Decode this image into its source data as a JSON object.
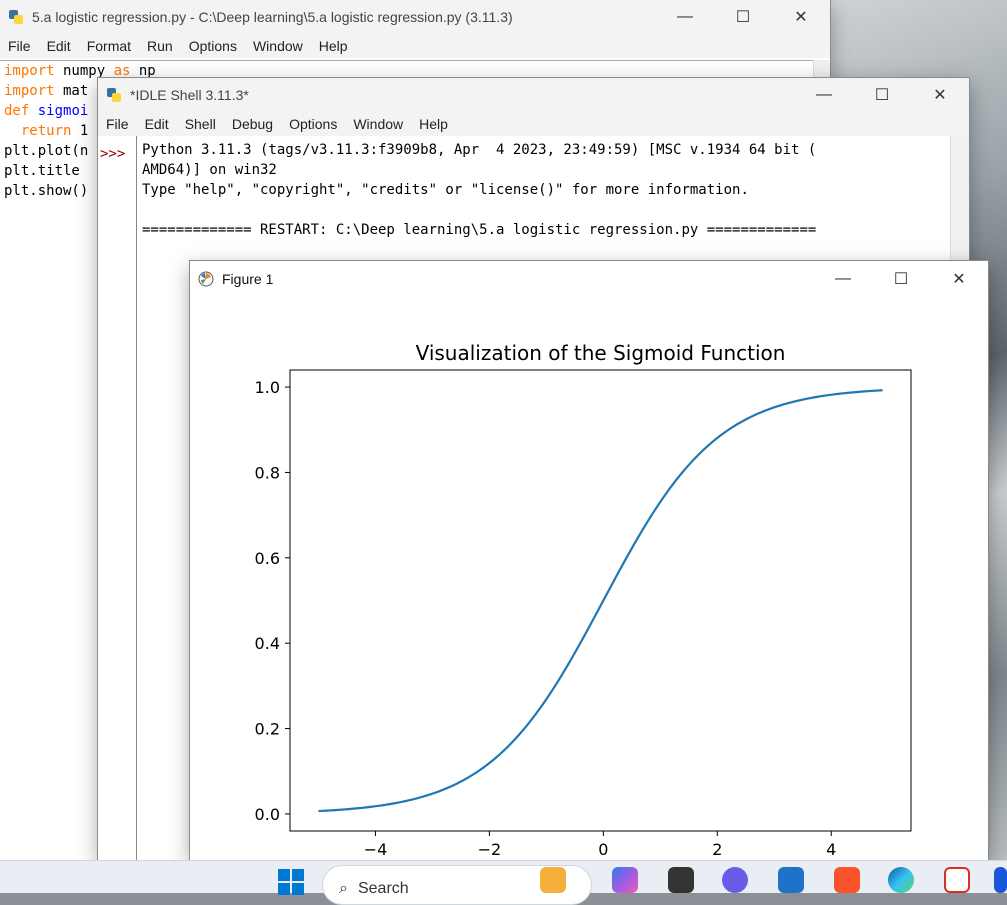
{
  "editor": {
    "title": "5.a logistic regression.py - C:\\Deep learning\\5.a logistic regression.py (3.11.3)",
    "menu": [
      "File",
      "Edit",
      "Format",
      "Run",
      "Options",
      "Window",
      "Help"
    ],
    "lines": [
      {
        "parts": [
          {
            "t": "import",
            "c": "kw"
          },
          {
            "t": " numpy ",
            "c": ""
          },
          {
            "t": "as",
            "c": "kw"
          },
          {
            "t": " np",
            "c": ""
          }
        ]
      },
      {
        "parts": [
          {
            "t": "import",
            "c": "kw"
          },
          {
            "t": " mat",
            "c": ""
          }
        ]
      },
      {
        "parts": [
          {
            "t": "def",
            "c": "kw"
          },
          {
            "t": " sigmoi",
            "c": "fn"
          }
        ]
      },
      {
        "parts": [
          {
            "t": "  return",
            "c": "kw"
          },
          {
            "t": " 1",
            "c": ""
          }
        ]
      },
      {
        "parts": [
          {
            "t": "plt.plot(n",
            "c": ""
          }
        ]
      },
      {
        "parts": [
          {
            "t": "plt.title",
            "c": ""
          }
        ]
      },
      {
        "parts": [
          {
            "t": "plt.show()",
            "c": ""
          }
        ]
      }
    ]
  },
  "shell": {
    "title": "*IDLE Shell 3.11.3*",
    "menu": [
      "File",
      "Edit",
      "Shell",
      "Debug",
      "Options",
      "Window",
      "Help"
    ],
    "prompt": ">>>",
    "lines": [
      "Python 3.11.3 (tags/v3.11.3:f3909b8, Apr  4 2023, 23:49:59) [MSC v.1934 64 bit (",
      "AMD64)] on win32",
      "Type \"help\", \"copyright\", \"credits\" or \"license()\" for more information.",
      "",
      "============= RESTART: C:\\Deep learning\\5.a logistic regression.py ============="
    ]
  },
  "figure": {
    "window_title": "Figure 1"
  },
  "controls": {
    "minimize": "—",
    "maximize": "☐",
    "close": "✕"
  },
  "taskbar": {
    "search_label": "Search"
  },
  "chart_data": {
    "type": "line",
    "title": "Visualization of the Sigmoid Function",
    "xlabel": "",
    "ylabel": "",
    "function": "1/(1+exp(-x))",
    "x_range": [
      -5,
      4.9
    ],
    "xlim": [
      -5.5,
      5.4
    ],
    "ylim": [
      -0.04,
      1.04
    ],
    "xticks": [
      -4,
      -2,
      0,
      2,
      4
    ],
    "xtick_labels": [
      "−4",
      "−2",
      "0",
      "2",
      "4"
    ],
    "yticks": [
      0.0,
      0.2,
      0.4,
      0.6,
      0.8,
      1.0
    ],
    "ytick_labels": [
      "0.0",
      "0.2",
      "0.4",
      "0.6",
      "0.8",
      "1.0"
    ],
    "line_color": "#1f77b4",
    "grid": false,
    "legend": "none",
    "x": [
      -5,
      -4.5,
      -4,
      -3.5,
      -3,
      -2.5,
      -2,
      -1.5,
      -1,
      -0.5,
      0,
      0.5,
      1,
      1.5,
      2,
      2.5,
      3,
      3.5,
      4,
      4.5,
      4.9
    ],
    "y": [
      0.0067,
      0.011,
      0.018,
      0.0293,
      0.0474,
      0.0759,
      0.1192,
      0.1824,
      0.2689,
      0.3775,
      0.5,
      0.6225,
      0.7311,
      0.8176,
      0.8808,
      0.9241,
      0.9526,
      0.9707,
      0.982,
      0.989,
      0.9926
    ]
  }
}
